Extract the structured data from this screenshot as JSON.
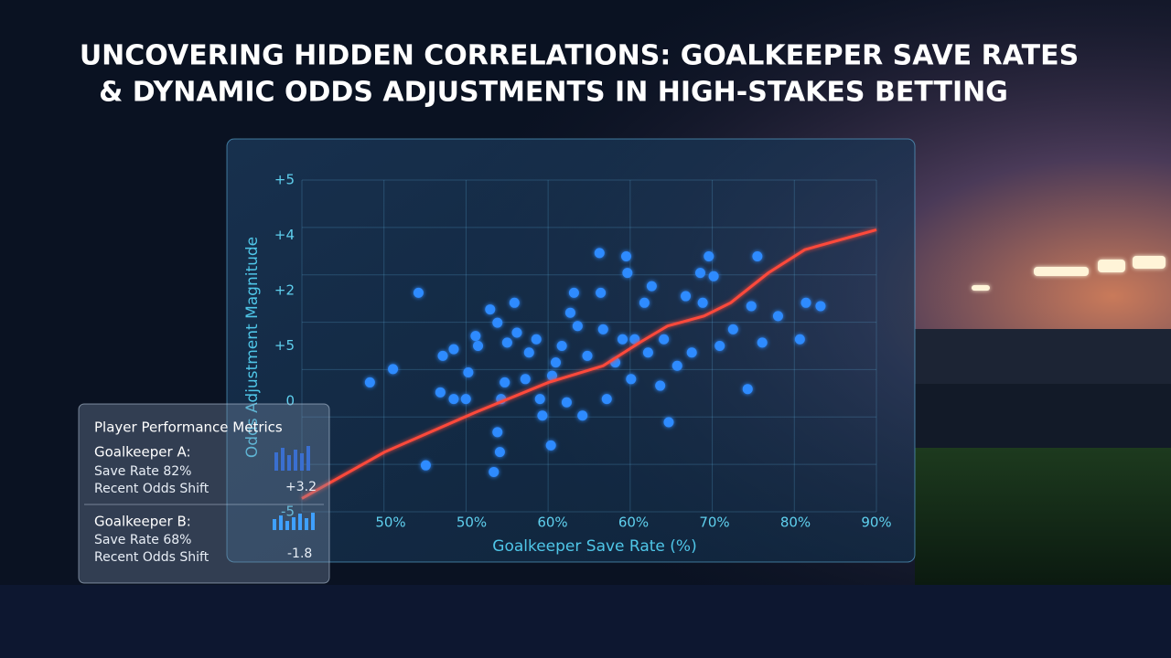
{
  "chart_data": {
    "type": "scatter",
    "title": "UNCOVERING HIDDEN CORRELATIONS: GOALKEEPER SAVE RATES",
    "subtitle": "& DYNAMIC ODDS ADJUSTMENTS IN HIGH-STAKES BETTING",
    "x_label": "Goalkeeper Save Rate (%)",
    "y_label": "Odds Adjustment Magnitude",
    "xlim": [
      42.7,
      90
    ],
    "ylim": [
      -5,
      5
    ],
    "x_tick_labels": [
      "50%",
      "50%",
      "60%",
      "60%",
      "70%",
      "80%",
      "90%"
    ],
    "y_tick_labels": [
      "+5",
      "+4",
      "+2",
      "+5",
      "0",
      null,
      "-5"
    ],
    "grid": true,
    "series": [
      {
        "name": null,
        "color": "#2e8bff",
        "x": [
          48.3,
          50.2,
          52.3,
          52.9,
          54.3,
          55.2,
          54.1,
          55.2,
          56.2,
          56.4,
          57.0,
          57.2,
          58.2,
          58.8,
          58.5,
          58.8,
          59.0,
          59.1,
          59.4,
          59.6,
          60.2,
          60.4,
          61.1,
          61.4,
          62.0,
          62.3,
          62.5,
          63.2,
          63.3,
          63.6,
          64.1,
          64.5,
          64.8,
          65.1,
          65.4,
          65.8,
          66.2,
          67.2,
          67.3,
          67.5,
          67.8,
          68.5,
          69.1,
          69.4,
          69.5,
          69.8,
          70.1,
          70.9,
          71.2,
          71.5,
          72.2,
          72.5,
          72.9,
          73.6,
          74.3,
          74.8,
          75.5,
          75.7,
          76.2,
          76.6,
          77.1,
          78.2,
          79.4,
          79.7,
          80.2,
          80.6,
          81.9,
          83.7,
          84.2,
          85.4
        ],
        "values": [
          -1.1,
          -0.7,
          1.6,
          -3.6,
          -0.3,
          -0.1,
          -1.4,
          -1.6,
          -1.6,
          -0.8,
          0.3,
          0.0,
          1.1,
          0.7,
          -3.8,
          -2.6,
          -3.2,
          -1.6,
          -1.1,
          0.1,
          1.3,
          0.4,
          -1.0,
          -0.2,
          0.2,
          -1.6,
          -2.1,
          -3.0,
          -0.9,
          -0.5,
          0.0,
          -1.7,
          1.0,
          1.6,
          0.6,
          -2.1,
          -0.3,
          2.8,
          1.6,
          0.5,
          -1.6,
          -0.5,
          0.2,
          2.7,
          2.2,
          -1.0,
          0.2,
          1.3,
          -0.2,
          1.8,
          -1.2,
          0.2,
          -2.3,
          -0.6,
          1.5,
          -0.2,
          2.2,
          1.3,
          2.7,
          2.1,
          0.0,
          0.5,
          -1.3,
          1.2,
          2.7,
          0.1,
          0.9,
          0.2,
          1.3,
          1.2
        ]
      }
    ],
    "trend_line": {
      "color": "#ff4a3a",
      "x": [
        42.7,
        49.5,
        57.0,
        63.0,
        67.5,
        70.5,
        72.8,
        75.8,
        78.0,
        81.1,
        84.1,
        90.0
      ],
      "values": [
        -4.6,
        -3.2,
        -2.0,
        -1.1,
        -0.6,
        0.1,
        0.6,
        0.9,
        1.3,
        2.2,
        2.9,
        3.5
      ]
    }
  },
  "metrics_panel": {
    "title": "Player Performance Metrics",
    "players": [
      {
        "name": "Goalkeeper A:",
        "save_rate": "Save Rate 82%",
        "shift_label": "Recent Odds Shift",
        "shift": "+3.2"
      },
      {
        "name": "Goalkeeper B:",
        "save_rate": "Save Rate 68%",
        "shift_label": "Recent Odds Shift",
        "shift": "-1.8"
      }
    ]
  }
}
